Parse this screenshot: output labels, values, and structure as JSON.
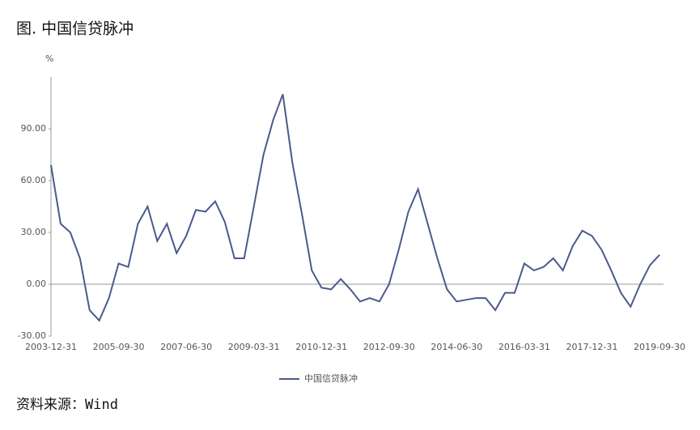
{
  "header": {
    "title": "图.  中国信贷脉冲"
  },
  "chart_data": {
    "type": "line",
    "y_unit": "%",
    "categories": [
      "2003-12-31",
      null,
      null,
      null,
      null,
      null,
      null,
      "2005-09-30",
      null,
      null,
      null,
      null,
      null,
      null,
      "2007-06-30",
      null,
      null,
      null,
      null,
      null,
      null,
      "2009-03-31",
      null,
      null,
      null,
      null,
      null,
      null,
      "2010-12-31",
      null,
      null,
      null,
      null,
      null,
      null,
      "2012-09-30",
      null,
      null,
      null,
      null,
      null,
      null,
      "2014-06-30",
      null,
      null,
      null,
      null,
      null,
      null,
      "2016-03-31",
      null,
      null,
      null,
      null,
      null,
      null,
      "2017-12-31",
      null,
      null,
      null,
      null,
      null,
      null,
      "2019-09-30"
    ],
    "series": [
      {
        "name": "中国信贷脉冲",
        "color": "#4a5a8c",
        "values": [
          69,
          35,
          30,
          15,
          -15,
          -21,
          -8,
          12,
          10,
          35,
          45,
          25,
          35,
          18,
          28,
          43,
          42,
          48,
          36,
          15,
          15,
          45,
          75,
          95,
          110,
          70,
          40,
          8,
          -2,
          -3,
          3,
          -3,
          -10,
          -8,
          -10,
          0,
          20,
          42,
          55,
          35,
          15,
          -3,
          -10,
          -9,
          -8,
          -8,
          -15,
          -5,
          -5,
          12,
          8,
          10,
          15,
          8,
          22,
          31,
          28,
          20,
          8,
          -5,
          -13,
          0,
          11,
          17
        ]
      }
    ],
    "ylim": [
      -30,
      120
    ],
    "yticks": [
      {
        "value": -30,
        "label": "-30.00"
      },
      {
        "value": 0,
        "label": "0.00"
      },
      {
        "value": 30,
        "label": "30.00"
      },
      {
        "value": 60,
        "label": "60.00"
      },
      {
        "value": 90,
        "label": "90.00"
      }
    ],
    "legend": "bottom"
  },
  "footer": {
    "source": "资料来源：Wind"
  }
}
